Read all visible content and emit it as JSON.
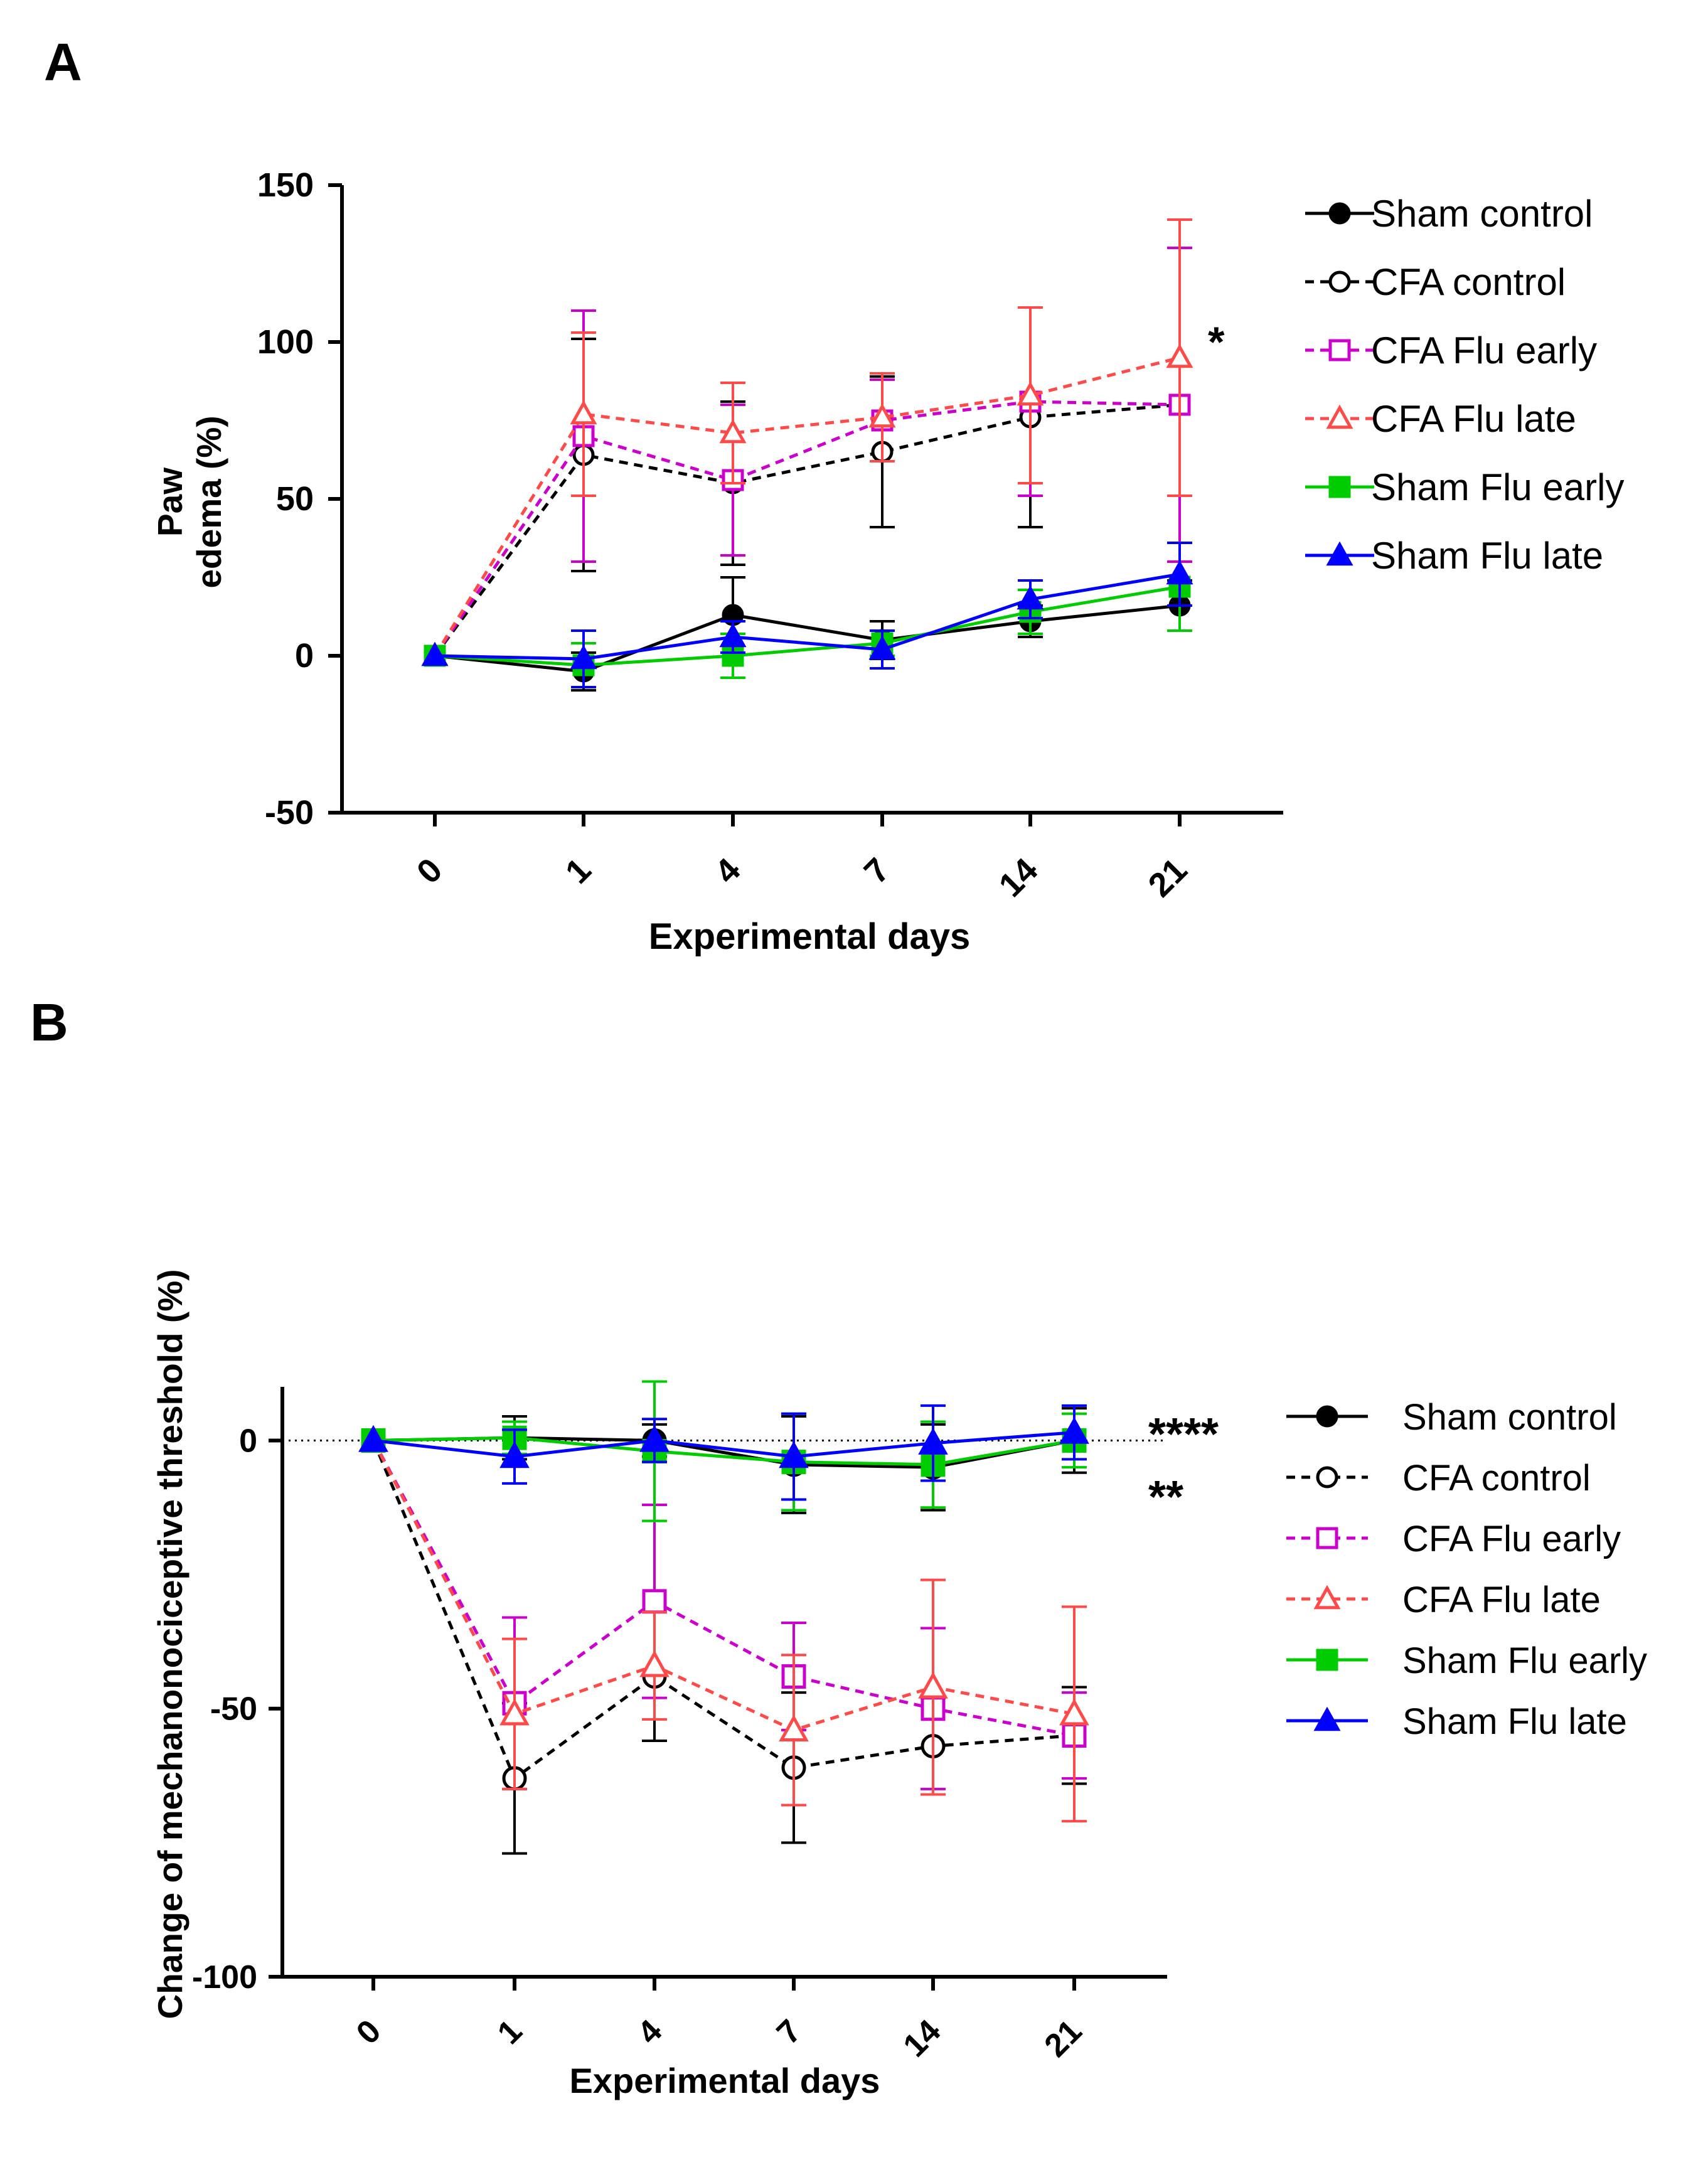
{
  "chart_data": [
    {
      "panel": "A",
      "type": "line",
      "title": "",
      "xlabel": "Experimental days",
      "ylabel": [
        "Paw",
        "edema (%)"
      ],
      "categories": [
        "0",
        "1",
        "4",
        "7",
        "14",
        "21"
      ],
      "ylim": [
        -50,
        150
      ],
      "yticks": [
        "150",
        "100",
        "50",
        "0",
        "-50"
      ],
      "ytick_values": [
        150,
        100,
        50,
        0,
        -50
      ],
      "grid": false,
      "legend_position": "right",
      "annotations": [
        {
          "text": "*",
          "near": "CFA Flu late, day 21"
        }
      ],
      "series": [
        {
          "name": "Sham control",
          "color": "#000000",
          "dashed": false,
          "marker": "circle-filled",
          "values": [
            0,
            -5,
            13,
            5,
            11,
            16
          ],
          "err": [
            0,
            6,
            12,
            6,
            5,
            8
          ]
        },
        {
          "name": "CFA control",
          "color": "#000000",
          "dashed": true,
          "marker": "circle-open",
          "values": [
            0,
            64,
            55,
            65,
            76,
            80
          ],
          "err": [
            0,
            37,
            26,
            24,
            35,
            50
          ]
        },
        {
          "name": "CFA Flu early",
          "color": "#cc00cc",
          "dashed": true,
          "marker": "square-open",
          "values": [
            0,
            70,
            56,
            75,
            81,
            80
          ],
          "err": [
            0,
            40,
            24,
            13,
            30,
            50
          ]
        },
        {
          "name": "CFA Flu late",
          "color": "#ff4a4a",
          "dashed": true,
          "marker": "triangle-open",
          "values": [
            0,
            77,
            71,
            76,
            83,
            95
          ],
          "err": [
            0,
            26,
            16,
            14,
            28,
            44
          ]
        },
        {
          "name": "Sham Flu early",
          "color": "#00cc00",
          "dashed": false,
          "marker": "square-filled",
          "values": [
            0,
            -3,
            0,
            4,
            14,
            22
          ],
          "err": [
            0,
            7,
            7,
            4,
            7,
            14
          ]
        },
        {
          "name": "Sham  Flu late",
          "color": "#0000ff",
          "dashed": false,
          "marker": "triangle-filled",
          "values": [
            0,
            -1,
            6,
            2,
            18,
            26
          ],
          "err": [
            0,
            9,
            5,
            6,
            6,
            10
          ]
        }
      ]
    },
    {
      "panel": "B",
      "type": "line",
      "title": "",
      "xlabel": "Experimental days",
      "ylabel": "Change of mechanonociceptive threshold (%)",
      "categories": [
        "0",
        "1",
        "4",
        "7",
        "14",
        "21"
      ],
      "ylim": [
        -100,
        10
      ],
      "yticks": [
        "0",
        "-50",
        "-100"
      ],
      "ytick_values": [
        0,
        -50,
        -100
      ],
      "grid": false,
      "reference_line": 0,
      "legend_position": "right",
      "annotations": [
        "****",
        "**"
      ],
      "series": [
        {
          "name": "Sham control",
          "color": "#000000",
          "dashed": false,
          "marker": "circle-filled",
          "values": [
            0,
            0.5,
            0,
            -4.5,
            -5,
            0
          ],
          "err": [
            0,
            4,
            3,
            9,
            8,
            6
          ]
        },
        {
          "name": "CFA control",
          "color": "#000000",
          "dashed": true,
          "marker": "circle-open",
          "values": [
            0,
            -63,
            -44,
            -61,
            -57,
            -55
          ],
          "err": [
            0,
            14,
            12,
            14,
            9,
            9
          ]
        },
        {
          "name": "CFA Flu early",
          "color": "#cc00cc",
          "dashed": true,
          "marker": "square-open",
          "values": [
            0,
            -49,
            -30,
            -44,
            -50,
            -55
          ],
          "err": [
            0,
            16,
            18,
            10,
            15,
            8
          ]
        },
        {
          "name": "CFA Flu late",
          "color": "#ff4a4a",
          "dashed": true,
          "marker": "triangle-open",
          "values": [
            0,
            -51,
            -42,
            -54,
            -46,
            -51
          ],
          "err": [
            0,
            14,
            10,
            14,
            20,
            20
          ]
        },
        {
          "name": "Sham Flu early",
          "color": "#00cc00",
          "dashed": false,
          "marker": "square-filled",
          "values": [
            0,
            0.5,
            -2,
            -4,
            -4.5,
            0
          ],
          "err": [
            0,
            3,
            13,
            9,
            8,
            5
          ]
        },
        {
          "name": "Sham Flu late",
          "color": "#0000ff",
          "dashed": false,
          "marker": "triangle-filled",
          "values": [
            0,
            -3,
            0,
            -3,
            -0.5,
            1.5
          ],
          "err": [
            0,
            5,
            4,
            8,
            7,
            5
          ]
        }
      ]
    }
  ]
}
